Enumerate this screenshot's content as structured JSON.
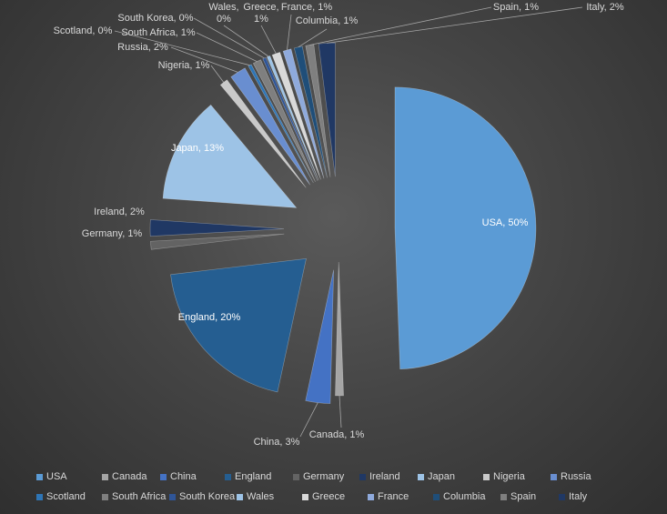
{
  "chart_data": {
    "type": "pie",
    "title": "",
    "slices": [
      {
        "name": "USA",
        "value": 50,
        "label": "USA, 50%",
        "color": "#5b9bd5"
      },
      {
        "name": "Canada",
        "value": 1,
        "label": "Canada, 1%",
        "color": "#a5a5a5"
      },
      {
        "name": "China",
        "value": 3,
        "label": "China, 3%",
        "color": "#4472c4"
      },
      {
        "name": "England",
        "value": 20,
        "label": "England, 20%",
        "color": "#255e91"
      },
      {
        "name": "Germany",
        "value": 1,
        "label": "Germany, 1%",
        "color": "#636363"
      },
      {
        "name": "Ireland",
        "value": 2,
        "label": "Ireland, 2%",
        "color": "#203864"
      },
      {
        "name": "Japan",
        "value": 13,
        "label": "Japan, 13%",
        "color": "#9dc3e6"
      },
      {
        "name": "Nigeria",
        "value": 1,
        "label": "Nigeria, 1%",
        "color": "#c9c9c9"
      },
      {
        "name": "Russia",
        "value": 2,
        "label": "Russia, 2%",
        "color": "#698ed0"
      },
      {
        "name": "Scotland",
        "value": 0,
        "label": "Scotland, 0%",
        "color": "#2e75b6"
      },
      {
        "name": "South Africa",
        "value": 1,
        "label": "South Africa, 1%",
        "color": "#7f7f7f"
      },
      {
        "name": "South Korea",
        "value": 0,
        "label": "South Korea, 0%",
        "color": "#2f5597"
      },
      {
        "name": "Wales",
        "value": 0,
        "label": "Wales, 0%",
        "label_lines": [
          "Wales,",
          "0%"
        ],
        "color": "#9dc3e6"
      },
      {
        "name": "Greece",
        "value": 1,
        "label": "Greece, 1%",
        "label_lines": [
          "Greece,",
          "1%"
        ],
        "color": "#d9d9d9"
      },
      {
        "name": "France",
        "value": 1,
        "label": "France, 1%",
        "color": "#8faadc"
      },
      {
        "name": "Columbia",
        "value": 1,
        "label": "Columbia, 1%",
        "color": "#1f4e79"
      },
      {
        "name": "Spain",
        "value": 1,
        "label": "Spain, 1%",
        "color": "#7f7f7f"
      },
      {
        "name": "Italy",
        "value": 2,
        "label": "Italy, 2%",
        "color": "#203864"
      }
    ],
    "legend_position": "bottom",
    "background": "#404040"
  }
}
